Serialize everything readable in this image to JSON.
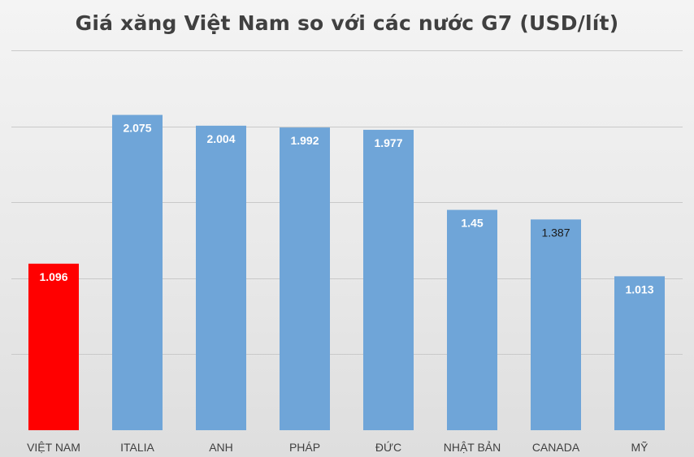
{
  "chart_data": {
    "type": "bar",
    "title": "Giá xăng Việt Nam so với các nước G7 (USD/lít)",
    "categories": [
      "VIỆT NAM",
      "ITALIA",
      "ANH",
      "PHÁP",
      "ĐỨC",
      "NHẬT BẢN",
      "CANADA",
      "MỸ"
    ],
    "values": [
      1.096,
      2.075,
      2.004,
      1.992,
      1.977,
      1.45,
      1.387,
      1.013
    ],
    "data_labels": [
      "1.096",
      "2.075",
      "2.004",
      "1.992",
      "1.977",
      "1.45",
      "1.387",
      "1.013"
    ],
    "bar_colors": [
      "#ff0000",
      "#6fa5d8",
      "#6fa5d8",
      "#6fa5d8",
      "#6fa5d8",
      "#6fa5d8",
      "#6fa5d8",
      "#6fa5d8"
    ],
    "data_label_colors": [
      "#ffffff",
      "#ffffff",
      "#ffffff",
      "#ffffff",
      "#ffffff",
      "#ffffff",
      "#1a1a1a",
      "#ffffff"
    ],
    "ylim": [
      0,
      2.5
    ],
    "gridlines": [
      0.5,
      1.0,
      1.5,
      2.0,
      2.5
    ],
    "grid": true,
    "legend": "none",
    "xlabel": "",
    "ylabel": ""
  }
}
